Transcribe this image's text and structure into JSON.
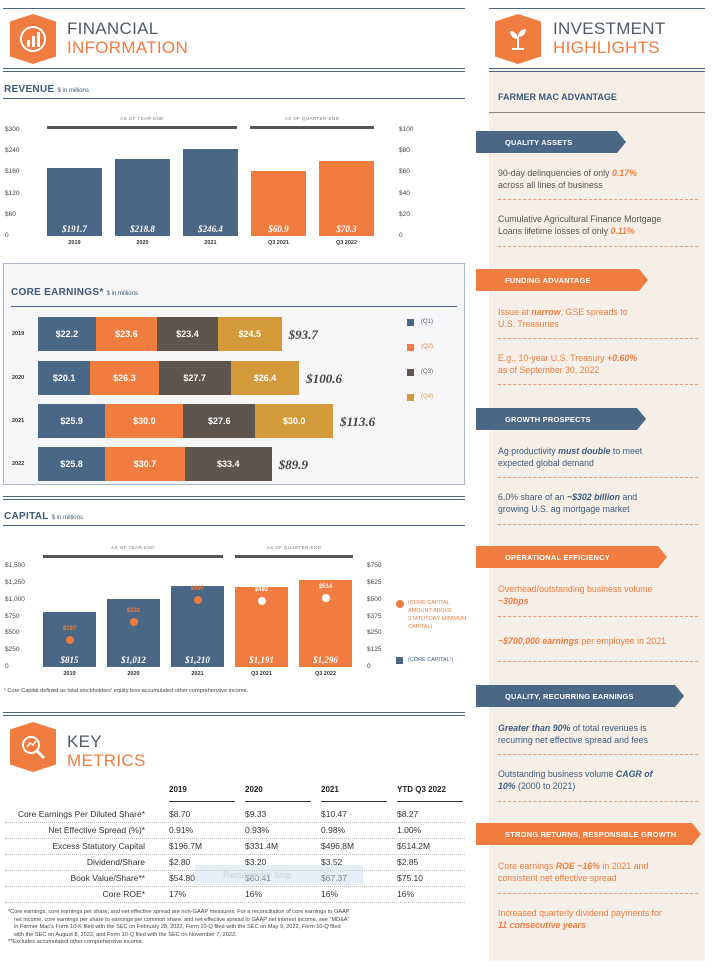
{
  "colors": {
    "orange": "#f07c40",
    "navy": "#4a6785",
    "brown": "#5d554e",
    "gold": "#d49a3a",
    "blue": "#3d5a7a"
  },
  "financial": {
    "title1": "FINANCIAL",
    "title2": "INFORMATION",
    "icon": "bar-chart-icon"
  },
  "investment": {
    "title1": "INVESTMENT",
    "title2": "HIGHLIGHTS",
    "icon": "plant-icon"
  },
  "revenue": {
    "title": "REVENUE",
    "unit": "$ in millions",
    "bracket_year": "AS OF YEAR-END",
    "bracket_quarter": "AS OF QUARTER-END",
    "left_ticks": [
      "$300",
      "$240",
      "$180",
      "$120",
      "$60",
      "0"
    ],
    "right_ticks": [
      "$100",
      "$80",
      "$60",
      "$40",
      "$20",
      "0"
    ]
  },
  "core": {
    "title": "CORE EARNINGS*",
    "unit": "$ in millions",
    "legend": [
      "(Q1)",
      "(Q2)",
      "(Q3)",
      "(Q4)"
    ]
  },
  "capital": {
    "title": "CAPITAL",
    "unit": "$ in millions",
    "bracket_year": "AS OF YEAR-END",
    "bracket_quarter": "AS OF QUARTER-END",
    "left_ticks": [
      "$1,500",
      "$1,250",
      "$1,000",
      "$750",
      "$500",
      "$250",
      "0"
    ],
    "right_ticks": [
      "$750",
      "$625",
      "$500",
      "$375",
      "$250",
      "$125",
      "0"
    ],
    "legend_dot": "(CORE CAPITAL AMOUNT ABOVE STATUTORY MINIMUM CAPITAL)",
    "legend_bar": "(CORE CAPITAL¹)",
    "footnote": "¹ Core Capital defined as total stockholders' equity less accumulated other comprehensive income."
  },
  "chart_data": [
    {
      "type": "bar",
      "title": "REVENUE",
      "ylabel": "$ in millions",
      "categories": [
        "2019",
        "2020",
        "2021",
        "Q3 2021",
        "Q3 2022"
      ],
      "values": [
        191.7,
        218.8,
        246.4,
        60.9,
        70.3
      ],
      "labels": [
        "$191.7",
        "$218.8",
        "$246.4",
        "$60.9",
        "$70.3"
      ],
      "ylim_year": [
        0,
        300
      ],
      "ylim_quarter": [
        0,
        100
      ]
    },
    {
      "type": "bar",
      "title": "CORE EARNINGS*",
      "orientation": "horizontal",
      "stacked": true,
      "categories": [
        "2019",
        "2020",
        "2021",
        "2022"
      ],
      "series": [
        {
          "name": "(Q1)",
          "values": [
            22.2,
            20.1,
            25.9,
            25.8
          ],
          "labels": [
            "$22.2",
            "$20.1",
            "$25.9",
            "$25.8"
          ]
        },
        {
          "name": "(Q2)",
          "values": [
            23.6,
            26.3,
            30.0,
            30.7
          ],
          "labels": [
            "$23.6",
            "$26.3",
            "$30.0",
            "$30.7"
          ]
        },
        {
          "name": "(Q3)",
          "values": [
            23.4,
            27.7,
            27.6,
            33.4
          ],
          "labels": [
            "$23.4",
            "$27.7",
            "$27.6",
            "$33.4"
          ]
        },
        {
          "name": "(Q4)",
          "values": [
            24.5,
            26.4,
            30.0,
            null
          ],
          "labels": [
            "$24.5",
            "$26.4",
            "$30.0",
            ""
          ]
        }
      ],
      "totals": [
        "$93.7",
        "$100.6",
        "$113.6",
        "$89.9"
      ]
    },
    {
      "type": "bar",
      "title": "CAPITAL",
      "categories": [
        "2019",
        "2020",
        "2021",
        "Q3 2021",
        "Q3 2022"
      ],
      "series": [
        {
          "name": "(CORE CAPITAL¹)",
          "values": [
            815,
            1012,
            1210,
            1191,
            1296
          ],
          "labels": [
            "$815",
            "$1,012",
            "$1,210",
            "$1,191",
            "$1,296"
          ]
        },
        {
          "name": "(CORE CAPITAL AMOUNT ABOVE STATUTORY MINIMUM CAPITAL)",
          "values": [
            197,
            331,
            497,
            492,
            514
          ],
          "labels": [
            "$197",
            "$331",
            "$497",
            "$492",
            "$514"
          ]
        }
      ],
      "ylim": [
        0,
        1500
      ],
      "ylim_right": [
        0,
        750
      ]
    }
  ],
  "key": {
    "title1": "KEY",
    "title2": "METRICS",
    "icon": "magnifier-chart-icon",
    "cols": [
      "2019",
      "2020",
      "2021",
      "YTD Q3 2022"
    ],
    "rows": [
      {
        "label": "Core Earnings Per Diluted Share*",
        "vals": [
          "$8.70",
          "$9.33",
          "$10.47",
          "$8.27"
        ]
      },
      {
        "label": "Net Effective Spread (%)*",
        "vals": [
          "0.91%",
          "0.93%",
          "0.98%",
          "1.00%"
        ]
      },
      {
        "label": "Excess Statutory Capital",
        "vals": [
          "$196.7M",
          "$331.4M",
          "$496.8M",
          "$514.2M"
        ]
      },
      {
        "label": "Dividend/Share",
        "vals": [
          "$2.80",
          "$3.20",
          "$3.52",
          "$2.85"
        ]
      },
      {
        "label": "Book Value/Share**",
        "vals": [
          "$54.80",
          "$60.41",
          "$67.37",
          "$75.10"
        ]
      },
      {
        "label": "Core ROE*",
        "vals": [
          "17%",
          "16%",
          "16%",
          "16%"
        ]
      }
    ],
    "watermark": "Rectangular Snip",
    "fn1": "*Core earnings, core earnings per share, and net effective spread are non-GAAP measures. For a reconciliation of core earnings to GAAP",
    "fn2": "net income, core earnings per share to earnings per common share, and net effective spread to GAAP net interest income, see \"MD&A\"",
    "fn3": "in Farmer Mac's Form 10-K filed with the SEC on February 28, 2022, Form 10-Q filed with the SEC on May 9, 2022, Form 10-Q filed",
    "fn4": "with the SEC on August 8, 2022, and Form 10-Q filed with the SEC on November 7, 2022.",
    "fn5": "**Excludes accumulated other comprehensive income."
  },
  "highlights": {
    "advantage": "FARMER MAC ADVANTAGE",
    "b1": "QUALITY ASSETS",
    "t1a": "90-day delinquencies of only ",
    "t1b": "0.17%",
    "t1c": "across all lines of business",
    "t2a": "Cumulative Agricultural Finance Mortgage",
    "t2b": "Loans lifetime losses of only ",
    "t2c": "0.11%",
    "b2": "FUNDING ADVANTAGE",
    "t3a": "Issue at ",
    "t3b": "narrow",
    "t3c": ", GSE spreads to",
    "t3d": "U.S. Treasuries",
    "t4a": "E.g., 10-year U.S. Treasury ",
    "t4b": "+0.60%",
    "t4c": "as of September 30, 2022",
    "b3": "GROWTH PROSPECTS",
    "t5a": "Ag productivity ",
    "t5b": "must double",
    "t5c": " to meet",
    "t5d": "expected global demand",
    "t6a": "6.0% share of an ",
    "t6b": "~$302 billion",
    "t6c": " and",
    "t6d": "growing U.S. ag mortgage market",
    "b4": "OPERATIONAL EFFICIENCY",
    "t7a": "Overhead/outstanding business volume",
    "t7b": "~30bps",
    "t8a": "~$700,000 earnings",
    "t8b": " per employee in 2021",
    "b5": "QUALITY, RECURRING EARNINGS",
    "t9a": "Greater than 90%",
    "t9b": " of total revenues is",
    "t9c": "recurring net effective spread and fees",
    "t10a": "Outstanding business volume ",
    "t10b": "CAGR of",
    "t10c": "10%",
    "t10d": " (2000 to 2021)",
    "b6": "STRONG RETURNS, RESPONSIBLE GROWTH",
    "t11a": "Core earnings ",
    "t11b": "ROE ~16%",
    "t11c": " in 2021 and",
    "t11d": "consistent net effective spread",
    "t12a": "Increased quarterly dividend payments for",
    "t12b": "11 consecutive years"
  }
}
